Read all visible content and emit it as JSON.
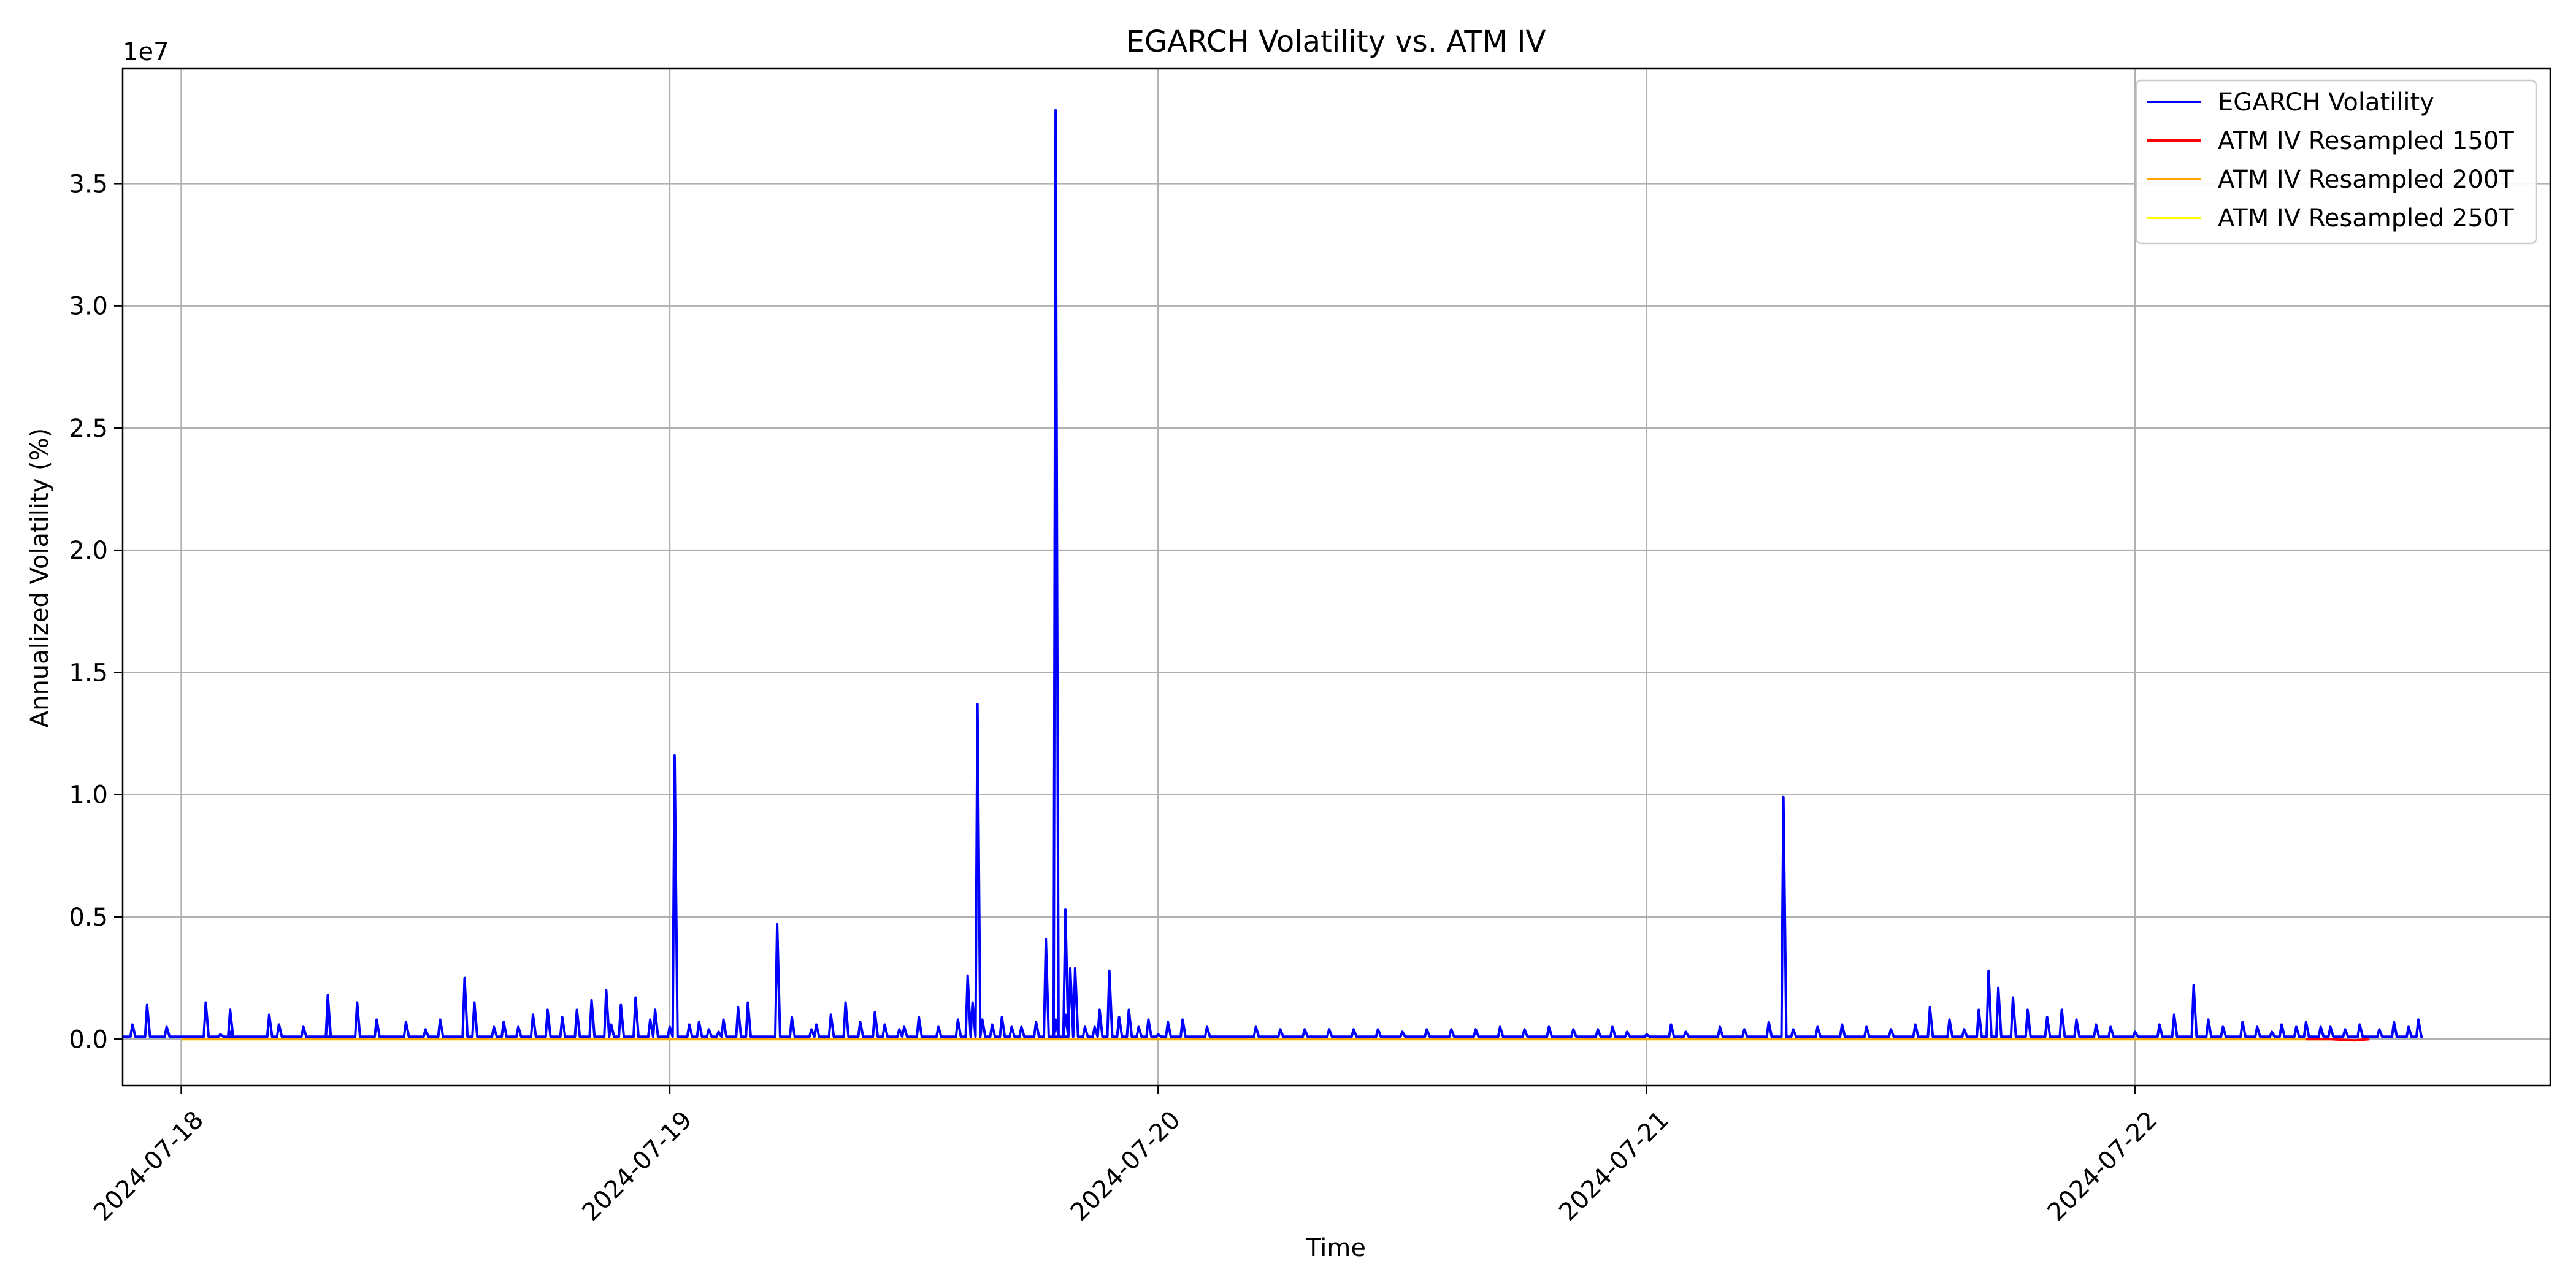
{
  "chart_data": {
    "type": "line",
    "title": "EGARCH Volatility vs. ATM IV",
    "xlabel": "Time",
    "ylabel": "Annualized Volatility (%)",
    "y_offset_label": "1e7",
    "y_scale": 10000000,
    "xlim": [
      -0.12,
      4.85
    ],
    "ylim": [
      -0.19,
      3.97
    ],
    "x_ticks": [
      {
        "value": 0,
        "label": "2024-07-18"
      },
      {
        "value": 1,
        "label": "2024-07-19"
      },
      {
        "value": 2,
        "label": "2024-07-20"
      },
      {
        "value": 3,
        "label": "2024-07-21"
      },
      {
        "value": 4,
        "label": "2024-07-22"
      }
    ],
    "y_ticks": [
      {
        "value": 0.0,
        "label": "0.0"
      },
      {
        "value": 0.5,
        "label": "0.5"
      },
      {
        "value": 1.0,
        "label": "1.0"
      },
      {
        "value": 1.5,
        "label": "1.5"
      },
      {
        "value": 2.0,
        "label": "2.0"
      },
      {
        "value": 2.5,
        "label": "2.5"
      },
      {
        "value": 3.0,
        "label": "3.0"
      },
      {
        "value": 3.5,
        "label": "3.5"
      }
    ],
    "grid": true,
    "legend_position": "top-right",
    "x_units_note": "days since 2024-07-18 00:00; y in units of 1e7 %",
    "series": [
      {
        "name": "EGARCH Volatility",
        "color": "#0000ff",
        "baseline": 0.01,
        "x_start": -0.12,
        "x_end": 4.59,
        "spikes": [
          [
            -0.1,
            0.06
          ],
          [
            -0.07,
            0.14
          ],
          [
            -0.03,
            0.05
          ],
          [
            0.05,
            0.15
          ],
          [
            0.08,
            0.02
          ],
          [
            0.1,
            0.12
          ],
          [
            0.18,
            0.1
          ],
          [
            0.2,
            0.06
          ],
          [
            0.25,
            0.05
          ],
          [
            0.3,
            0.12
          ],
          [
            0.36,
            0.15
          ],
          [
            0.4,
            0.08
          ],
          [
            0.46,
            0.07
          ],
          [
            0.5,
            0.04
          ],
          [
            0.53,
            0.08
          ],
          [
            0.58,
            0.25
          ],
          [
            0.6,
            0.15
          ],
          [
            0.64,
            0.05
          ],
          [
            0.66,
            0.07
          ],
          [
            0.69,
            0.05
          ],
          [
            0.72,
            0.1
          ],
          [
            0.75,
            0.12
          ],
          [
            0.78,
            0.09
          ],
          [
            0.81,
            0.12
          ],
          [
            0.84,
            0.16
          ],
          [
            0.87,
            0.2
          ],
          [
            0.88,
            0.06
          ],
          [
            0.9,
            0.14
          ],
          [
            0.93,
            0.17
          ],
          [
            0.96,
            0.08
          ],
          [
            0.97,
            0.12
          ],
          [
            1.0,
            0.05
          ],
          [
            1.01,
            1.16
          ],
          [
            1.04,
            0.06
          ],
          [
            1.06,
            0.07
          ],
          [
            1.08,
            0.04
          ],
          [
            1.11,
            0.08
          ],
          [
            1.14,
            0.13
          ],
          [
            1.16,
            0.15
          ],
          [
            1.22,
            0.47
          ],
          [
            1.25,
            0.09
          ],
          [
            1.29,
            0.04
          ],
          [
            1.33,
            0.1
          ],
          [
            1.36,
            0.15
          ],
          [
            1.39,
            0.07
          ],
          [
            1.42,
            0.11
          ],
          [
            1.44,
            0.06
          ],
          [
            1.48,
            0.05
          ],
          [
            1.51,
            0.09
          ],
          [
            1.55,
            0.05
          ],
          [
            1.59,
            0.08
          ],
          [
            1.61,
            0.26
          ],
          [
            1.62,
            0.15
          ],
          [
            1.64,
            0.08
          ],
          [
            1.66,
            0.06
          ],
          [
            1.68,
            0.09
          ],
          [
            1.7,
            0.05
          ],
          [
            1.72,
            0.05
          ],
          [
            1.75,
            0.07
          ],
          [
            1.79,
            0.08
          ],
          [
            1.81,
            0.1
          ],
          [
            1.83,
            0.29
          ],
          [
            1.85,
            0.05
          ],
          [
            1.87,
            0.05
          ],
          [
            1.88,
            0.12
          ],
          [
            1.9,
            0.28
          ],
          [
            1.92,
            0.09
          ],
          [
            1.94,
            0.12
          ],
          [
            1.96,
            0.05
          ],
          [
            1.98,
            0.08
          ],
          [
            2.0,
            0.02
          ],
          [
            2.02,
            0.07
          ],
          [
            2.05,
            0.08
          ],
          [
            2.1,
            0.05
          ],
          [
            2.2,
            0.05
          ],
          [
            2.25,
            0.04
          ],
          [
            2.3,
            0.04
          ],
          [
            2.35,
            0.04
          ],
          [
            2.4,
            0.04
          ],
          [
            2.45,
            0.04
          ],
          [
            2.5,
            0.03
          ],
          [
            2.55,
            0.04
          ],
          [
            2.6,
            0.04
          ],
          [
            2.65,
            0.04
          ],
          [
            2.7,
            0.05
          ],
          [
            2.75,
            0.04
          ],
          [
            2.8,
            0.05
          ],
          [
            2.85,
            0.04
          ],
          [
            2.9,
            0.04
          ],
          [
            2.93,
            0.05
          ],
          [
            2.96,
            0.03
          ],
          [
            3.0,
            0.02
          ],
          [
            3.05,
            0.06
          ],
          [
            3.08,
            0.03
          ],
          [
            3.15,
            0.05
          ],
          [
            3.2,
            0.04
          ],
          [
            3.25,
            0.07
          ],
          [
            3.28,
            0.99
          ],
          [
            3.3,
            0.04
          ],
          [
            3.35,
            0.05
          ],
          [
            3.4,
            0.06
          ],
          [
            3.45,
            0.05
          ],
          [
            3.5,
            0.04
          ],
          [
            3.55,
            0.06
          ],
          [
            3.58,
            0.13
          ],
          [
            3.62,
            0.08
          ],
          [
            3.65,
            0.04
          ],
          [
            3.68,
            0.12
          ],
          [
            3.7,
            0.28
          ],
          [
            3.72,
            0.21
          ],
          [
            3.75,
            0.17
          ],
          [
            3.78,
            0.12
          ],
          [
            3.82,
            0.09
          ],
          [
            3.85,
            0.12
          ],
          [
            3.88,
            0.08
          ],
          [
            3.92,
            0.06
          ],
          [
            3.95,
            0.05
          ],
          [
            4.0,
            0.03
          ],
          [
            4.05,
            0.06
          ],
          [
            4.08,
            0.1
          ],
          [
            4.12,
            0.22
          ],
          [
            4.15,
            0.08
          ],
          [
            4.18,
            0.05
          ],
          [
            4.22,
            0.07
          ],
          [
            4.25,
            0.05
          ],
          [
            4.28,
            0.03
          ],
          [
            4.3,
            0.06
          ],
          [
            4.33,
            0.05
          ],
          [
            4.35,
            0.07
          ],
          [
            4.38,
            0.05
          ],
          [
            4.4,
            0.05
          ],
          [
            4.43,
            0.04
          ],
          [
            4.46,
            0.06
          ],
          [
            4.5,
            0.04
          ],
          [
            4.53,
            0.07
          ],
          [
            4.56,
            0.05
          ],
          [
            4.58,
            0.08
          ],
          [
            1.63,
            1.37
          ],
          [
            1.77,
            0.41
          ],
          [
            1.79,
            3.8
          ],
          [
            1.81,
            0.53
          ],
          [
            1.82,
            0.29
          ],
          [
            1.1,
            0.03
          ],
          [
            1.3,
            0.06
          ],
          [
            1.47,
            0.04
          ],
          [
            0.3,
            0.18
          ],
          [
            0.1,
            0.03
          ]
        ]
      },
      {
        "name": "ATM IV Resampled 150T",
        "color": "#ff0000",
        "x": [
          4.35,
          4.4,
          4.45,
          4.48
        ],
        "values": [
          0.0,
          0.0,
          -0.005,
          0.0
        ]
      },
      {
        "name": "ATM IV Resampled 200T",
        "color": "#ffa500",
        "x": [
          0.0,
          4.4
        ],
        "values": [
          0.0,
          0.0
        ]
      },
      {
        "name": "ATM IV Resampled 250T",
        "color": "#ffff00",
        "x": [
          0.0,
          4.4
        ],
        "values": [
          0.0,
          0.0
        ]
      }
    ]
  }
}
